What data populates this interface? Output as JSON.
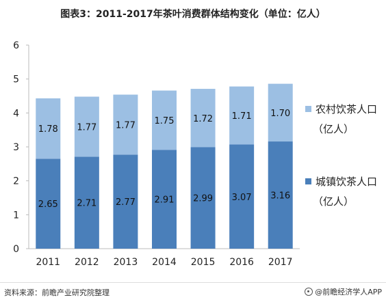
{
  "title": "图表3：2011-2017年茶叶消费群体结构变化（单位：亿人）",
  "footer": {
    "source": "资料来源：前瞻产业研究院整理",
    "brand": "@前瞻经济学人APP"
  },
  "colors": {
    "urban": "#4a7fba",
    "rural": "#9cbfe3"
  },
  "chart_data": {
    "type": "bar",
    "stacked": true,
    "categories": [
      "2011",
      "2012",
      "2013",
      "2014",
      "2015",
      "2016",
      "2017"
    ],
    "series": [
      {
        "name": "城镇饮茶人口（亿人）",
        "values": [
          2.65,
          2.71,
          2.77,
          2.91,
          2.99,
          3.07,
          3.16
        ]
      },
      {
        "name": "农村饮茶人口（亿人）",
        "values": [
          1.78,
          1.77,
          1.77,
          1.75,
          1.72,
          1.71,
          1.7
        ]
      }
    ],
    "legend": [
      {
        "line1": "农村饮茶人口",
        "line2": "（亿人）",
        "series": 1
      },
      {
        "line1": "城镇饮茶人口",
        "line2": "（亿人）",
        "series": 0
      }
    ],
    "legend_position": "right",
    "ylim": [
      0,
      6
    ],
    "yticks": [
      0,
      1,
      2,
      3,
      4,
      5,
      6
    ],
    "grid": false
  }
}
